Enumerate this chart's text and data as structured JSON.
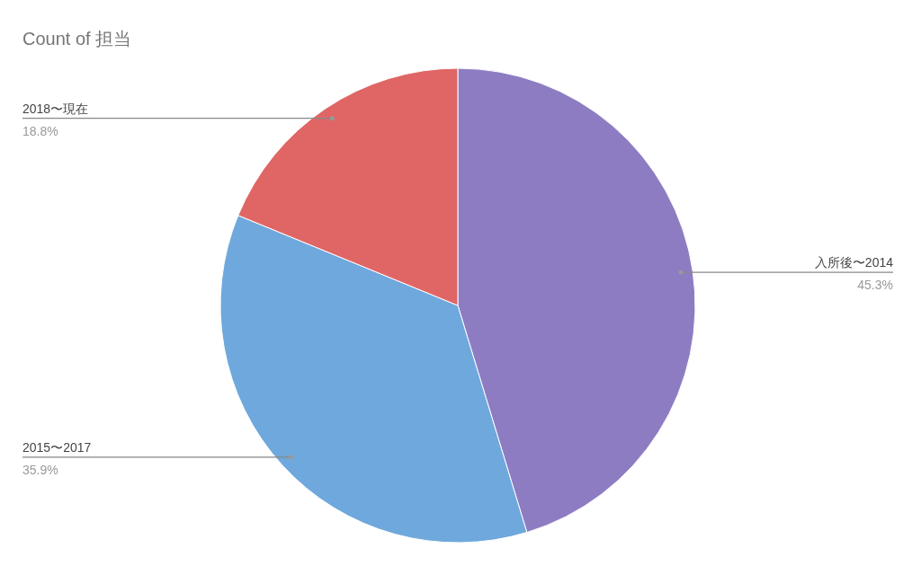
{
  "chart_data": {
    "type": "pie",
    "title": "Count of 担当",
    "categories": [
      "入所後〜2014",
      "2015〜2017",
      "2018〜現在"
    ],
    "values": [
      45.3,
      35.9,
      18.8
    ],
    "value_labels": [
      "45.3%",
      "35.9%",
      "18.8%"
    ],
    "colors": [
      "#8e7cc3",
      "#6fa8dc",
      "#e06666"
    ]
  }
}
